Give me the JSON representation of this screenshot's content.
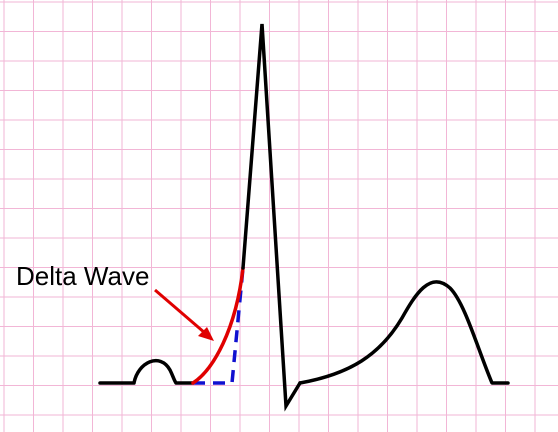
{
  "diagram": {
    "annotation_label": "Delta Wave",
    "colors": {
      "grid": "#f2b6d6",
      "ecg_trace": "#000000",
      "delta_wave": "#e00000",
      "normal_upstroke_dashed": "#1010d0",
      "arrow": "#e00000"
    }
  }
}
